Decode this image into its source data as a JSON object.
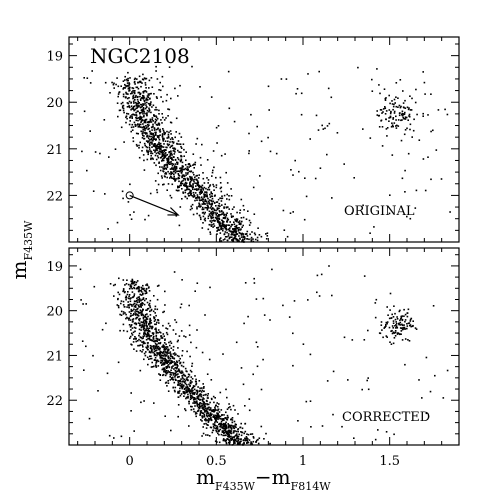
{
  "chart_data": [
    {
      "type": "scatter",
      "panel": "top",
      "title": "NGC2108",
      "label": "ORIGINAL",
      "xlabel": "",
      "ylabel": "mF435W",
      "xlim": [
        -0.35,
        1.9
      ],
      "ylim": [
        23.0,
        18.6
      ],
      "y_inverted": true,
      "xticks": [
        0,
        0.5,
        1,
        1.5
      ],
      "yticks": [
        19,
        20,
        21,
        22
      ],
      "reddening_vector": {
        "from": [
          0.0,
          22.0
        ],
        "to": [
          0.28,
          22.42
        ]
      },
      "populations": [
        {
          "name": "",
          "color": "#000000",
          "kind": "main-sequence",
          "ridge": [
            [
              0.02,
              19.45
            ],
            [
              0.05,
              20.0
            ],
            [
              0.1,
              20.5
            ],
            [
              0.18,
              21.0
            ],
            [
              0.28,
              21.5
            ],
            [
              0.4,
              22.0
            ],
            [
              0.52,
              22.5
            ],
            [
              0.65,
              23.0
            ]
          ],
          "width": 0.12,
          "count": 1500
        },
        {
          "name": "",
          "color": "#000000",
          "kind": "red-clump",
          "center": [
            1.54,
            20.25
          ],
          "spread": [
            0.06,
            0.2
          ],
          "count": 110
        },
        {
          "name": "",
          "color": "#000000",
          "kind": "field",
          "region": [
            [
              -0.3,
              19.2
            ],
            [
              1.85,
              22.9
            ]
          ],
          "count": 180
        }
      ]
    },
    {
      "type": "scatter",
      "panel": "bottom",
      "title": "",
      "label": "CORRECTED",
      "xlabel": "mF435W − mF814W",
      "ylabel": "mF435W",
      "xlim": [
        -0.35,
        1.9
      ],
      "ylim": [
        23.0,
        18.6
      ],
      "y_inverted": true,
      "xticks": [
        0,
        0.5,
        1,
        1.5
      ],
      "yticks": [
        19,
        20,
        21,
        22
      ],
      "populations": [
        {
          "name": "",
          "color": "#000000",
          "kind": "main-sequence",
          "ridge": [
            [
              0.02,
              19.3
            ],
            [
              0.04,
              20.0
            ],
            [
              0.1,
              20.5
            ],
            [
              0.18,
              21.0
            ],
            [
              0.28,
              21.5
            ],
            [
              0.4,
              22.0
            ],
            [
              0.52,
              22.5
            ],
            [
              0.65,
              23.0
            ]
          ],
          "width": 0.1,
          "count": 1500
        },
        {
          "name": "",
          "color": "#000000",
          "kind": "red-clump",
          "center": [
            1.54,
            20.3
          ],
          "spread": [
            0.05,
            0.18
          ],
          "count": 110
        },
        {
          "name": "",
          "color": "#000000",
          "kind": "field",
          "region": [
            [
              -0.3,
              19.0
            ],
            [
              1.85,
              22.9
            ]
          ],
          "count": 160
        }
      ]
    }
  ],
  "labels": {
    "title": "NGC2108",
    "top_panel": "ORIGINAL",
    "bottom_panel": "CORRECTED",
    "ylabel_main": "m",
    "ylabel_sub": "F435W",
    "xlabel_m1": "m",
    "xlabel_sub1": "F435W",
    "xlabel_minus": "−",
    "xlabel_m2": "m",
    "xlabel_sub2": "F814W",
    "xticks": [
      "0",
      "0.5",
      "1",
      "1.5"
    ],
    "yticks": [
      "19",
      "20",
      "21",
      "22"
    ]
  }
}
